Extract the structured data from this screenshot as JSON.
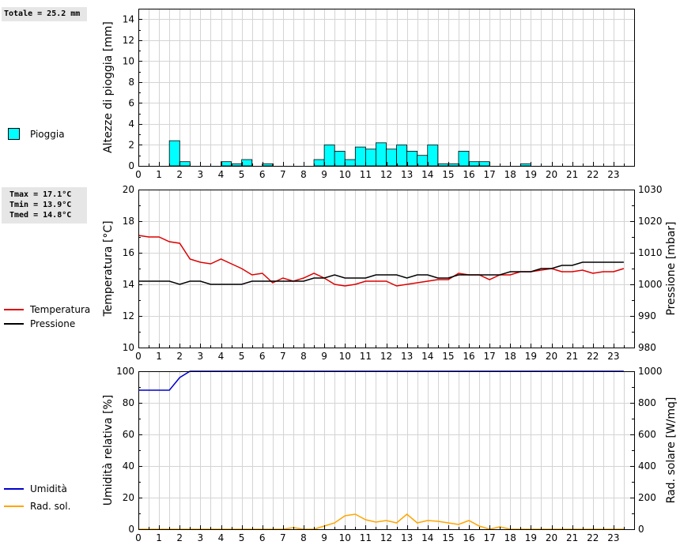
{
  "rain_panel": {
    "total_label": "Totale = 25.2 mm",
    "legend": [
      {
        "label": "Pioggia",
        "color": "#00ffff"
      }
    ]
  },
  "temp_panel": {
    "stats": [
      "Tmax = 17.1°C",
      "Tmin = 13.9°C",
      "Tmed = 14.8°C"
    ],
    "legend": [
      {
        "label": "Temperatura",
        "color": "#dd0000"
      },
      {
        "label": "Pressione",
        "color": "#000000"
      }
    ]
  },
  "hum_panel": {
    "legend": [
      {
        "label": "Umidità",
        "color": "#0000cc"
      },
      {
        "label": "Rad. sol.",
        "color": "#ffa500"
      }
    ]
  },
  "chart_data": [
    {
      "type": "bar",
      "ylabel": "Altezze di pioggia [mm]",
      "xlim": [
        0,
        24
      ],
      "ylim": [
        0,
        15
      ],
      "yticks": [
        0,
        2,
        4,
        6,
        8,
        10,
        12,
        14
      ],
      "xticks": [
        0,
        1,
        2,
        3,
        4,
        5,
        6,
        7,
        8,
        9,
        10,
        11,
        12,
        13,
        14,
        15,
        16,
        17,
        18,
        19,
        20,
        21,
        22,
        23
      ],
      "grid": true,
      "series": [
        {
          "name": "Pioggia",
          "color": "#00ffff",
          "bin_width": 0.5,
          "x": [
            1.5,
            2.0,
            4.0,
            4.5,
            5.0,
            6.0,
            8.5,
            9.0,
            9.5,
            10.0,
            10.5,
            11.0,
            11.5,
            12.0,
            12.5,
            13.0,
            13.5,
            14.0,
            14.5,
            15.0,
            15.5,
            16.0,
            16.5,
            18.5
          ],
          "values": [
            2.4,
            0.4,
            0.4,
            0.2,
            0.6,
            0.2,
            0.6,
            2.0,
            1.4,
            0.6,
            1.8,
            1.6,
            2.2,
            1.6,
            2.0,
            1.4,
            1.0,
            2.0,
            0.2,
            0.2,
            1.4,
            0.4,
            0.4,
            0.2
          ]
        }
      ]
    },
    {
      "type": "line",
      "ylabel": "Temperatura [°C]",
      "y2label": "Pressione [mbar]",
      "xlim": [
        0,
        24
      ],
      "ylim": [
        10,
        20
      ],
      "y2lim": [
        980,
        1030
      ],
      "yticks": [
        10,
        12,
        14,
        16,
        18,
        20
      ],
      "y2ticks": [
        980,
        990,
        1000,
        1010,
        1020,
        1030
      ],
      "xticks": [
        0,
        1,
        2,
        3,
        4,
        5,
        6,
        7,
        8,
        9,
        10,
        11,
        12,
        13,
        14,
        15,
        16,
        17,
        18,
        19,
        20,
        21,
        22,
        23
      ],
      "grid": true,
      "series": [
        {
          "name": "Temperatura",
          "axis": "left",
          "color": "#dd0000",
          "x": [
            0,
            0.5,
            1,
            1.5,
            2,
            2.5,
            3,
            3.5,
            4,
            4.5,
            5,
            5.5,
            6,
            6.5,
            7,
            7.5,
            8,
            8.5,
            9,
            9.5,
            10,
            10.5,
            11,
            11.5,
            12,
            12.5,
            13,
            13.5,
            14,
            14.5,
            15,
            15.5,
            16,
            16.5,
            17,
            17.5,
            18,
            18.5,
            19,
            19.5,
            20,
            20.5,
            21,
            21.5,
            22,
            22.5,
            23,
            23.5
          ],
          "values": [
            17.1,
            17.0,
            17.0,
            16.7,
            16.6,
            15.6,
            15.4,
            15.3,
            15.6,
            15.3,
            15.0,
            14.6,
            14.7,
            14.1,
            14.4,
            14.2,
            14.4,
            14.7,
            14.4,
            14.0,
            13.9,
            14.0,
            14.2,
            14.2,
            14.2,
            13.9,
            14.0,
            14.1,
            14.2,
            14.3,
            14.3,
            14.7,
            14.6,
            14.6,
            14.3,
            14.6,
            14.6,
            14.8,
            14.8,
            14.9,
            15.0,
            14.8,
            14.8,
            14.9,
            14.7,
            14.8,
            14.8,
            15.0
          ]
        },
        {
          "name": "Pressione",
          "axis": "right",
          "color": "#000000",
          "x": [
            0,
            0.5,
            1,
            1.5,
            2,
            2.5,
            3,
            3.5,
            4,
            4.5,
            5,
            5.5,
            6,
            6.5,
            7,
            7.5,
            8,
            8.5,
            9,
            9.5,
            10,
            10.5,
            11,
            11.5,
            12,
            12.5,
            13,
            13.5,
            14,
            14.5,
            15,
            15.5,
            16,
            16.5,
            17,
            17.5,
            18,
            18.5,
            19,
            19.5,
            20,
            20.5,
            21,
            21.5,
            22,
            22.5,
            23,
            23.5
          ],
          "values": [
            1001,
            1001,
            1001,
            1001,
            1000,
            1001,
            1001,
            1000,
            1000,
            1000,
            1000,
            1001,
            1001,
            1001,
            1001,
            1001,
            1001,
            1002,
            1002,
            1003,
            1002,
            1002,
            1002,
            1003,
            1003,
            1003,
            1002,
            1003,
            1003,
            1002,
            1002,
            1003,
            1003,
            1003,
            1003,
            1003,
            1004,
            1004,
            1004,
            1005,
            1005,
            1006,
            1006,
            1007,
            1007,
            1007,
            1007,
            1007
          ]
        }
      ]
    },
    {
      "type": "line",
      "ylabel": "Umidità relativa [%]",
      "y2label": "Rad. solare [W/mq]",
      "xlim": [
        0,
        24
      ],
      "ylim": [
        0,
        100
      ],
      "y2lim": [
        0,
        1000
      ],
      "yticks": [
        0,
        20,
        40,
        60,
        80,
        100
      ],
      "y2ticks": [
        0,
        200,
        400,
        600,
        800,
        1000
      ],
      "xticks": [
        0,
        1,
        2,
        3,
        4,
        5,
        6,
        7,
        8,
        9,
        10,
        11,
        12,
        13,
        14,
        15,
        16,
        17,
        18,
        19,
        20,
        21,
        22,
        23
      ],
      "grid": true,
      "series": [
        {
          "name": "Umidità",
          "axis": "left",
          "color": "#0000cc",
          "x": [
            0,
            0.5,
            1,
            1.5,
            2,
            2.5,
            3,
            23.5
          ],
          "values": [
            88,
            88,
            88,
            88,
            96,
            100,
            100,
            100
          ]
        },
        {
          "name": "Rad. sol.",
          "axis": "right",
          "color": "#ffa500",
          "x": [
            0,
            7,
            7.5,
            8,
            8.5,
            9,
            9.5,
            10,
            10.5,
            11,
            11.5,
            12,
            12.5,
            13,
            13.5,
            14,
            14.5,
            15,
            15.5,
            16,
            16.5,
            17,
            17.5,
            18,
            23.5
          ],
          "values": [
            0,
            0,
            10,
            0,
            0,
            20,
            40,
            85,
            95,
            60,
            45,
            55,
            40,
            95,
            40,
            55,
            50,
            40,
            30,
            55,
            20,
            0,
            15,
            0,
            0
          ]
        }
      ]
    }
  ]
}
